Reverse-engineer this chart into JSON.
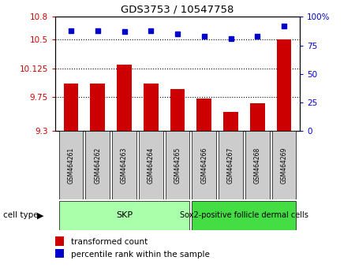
{
  "title": "GDS3753 / 10547758",
  "samples": [
    "GSM464261",
    "GSM464262",
    "GSM464263",
    "GSM464264",
    "GSM464265",
    "GSM464266",
    "GSM464267",
    "GSM464268",
    "GSM464269"
  ],
  "transformed_count": [
    9.92,
    9.92,
    10.175,
    9.92,
    9.85,
    9.73,
    9.55,
    9.67,
    10.5
  ],
  "percentile_rank": [
    88,
    88,
    87,
    88,
    85,
    83,
    81,
    83,
    92
  ],
  "ylim_left": [
    9.3,
    10.8
  ],
  "yticks_left": [
    9.3,
    9.75,
    10.125,
    10.5,
    10.8
  ],
  "ytick_labels_left": [
    "9.3",
    "9.75",
    "10.125",
    "10.5",
    "10.8"
  ],
  "ylim_right": [
    0,
    100
  ],
  "yticks_right": [
    0,
    25,
    50,
    75,
    100
  ],
  "ytick_labels_right": [
    "0",
    "25",
    "50",
    "75",
    "100%"
  ],
  "bar_color": "#cc0000",
  "dot_color": "#0000cc",
  "skp_count": 5,
  "sox2_count": 4,
  "skp_label": "SKP",
  "skp_color": "#aaffaa",
  "sox2_label": "Sox2-positive follicle dermal cells",
  "sox2_color": "#44dd44",
  "cell_type_label": "cell type",
  "legend_bar_label": "transformed count",
  "legend_dot_label": "percentile rank within the sample",
  "sample_box_color": "#cccccc",
  "grid_yticks": [
    9.75,
    10.125,
    10.5
  ]
}
